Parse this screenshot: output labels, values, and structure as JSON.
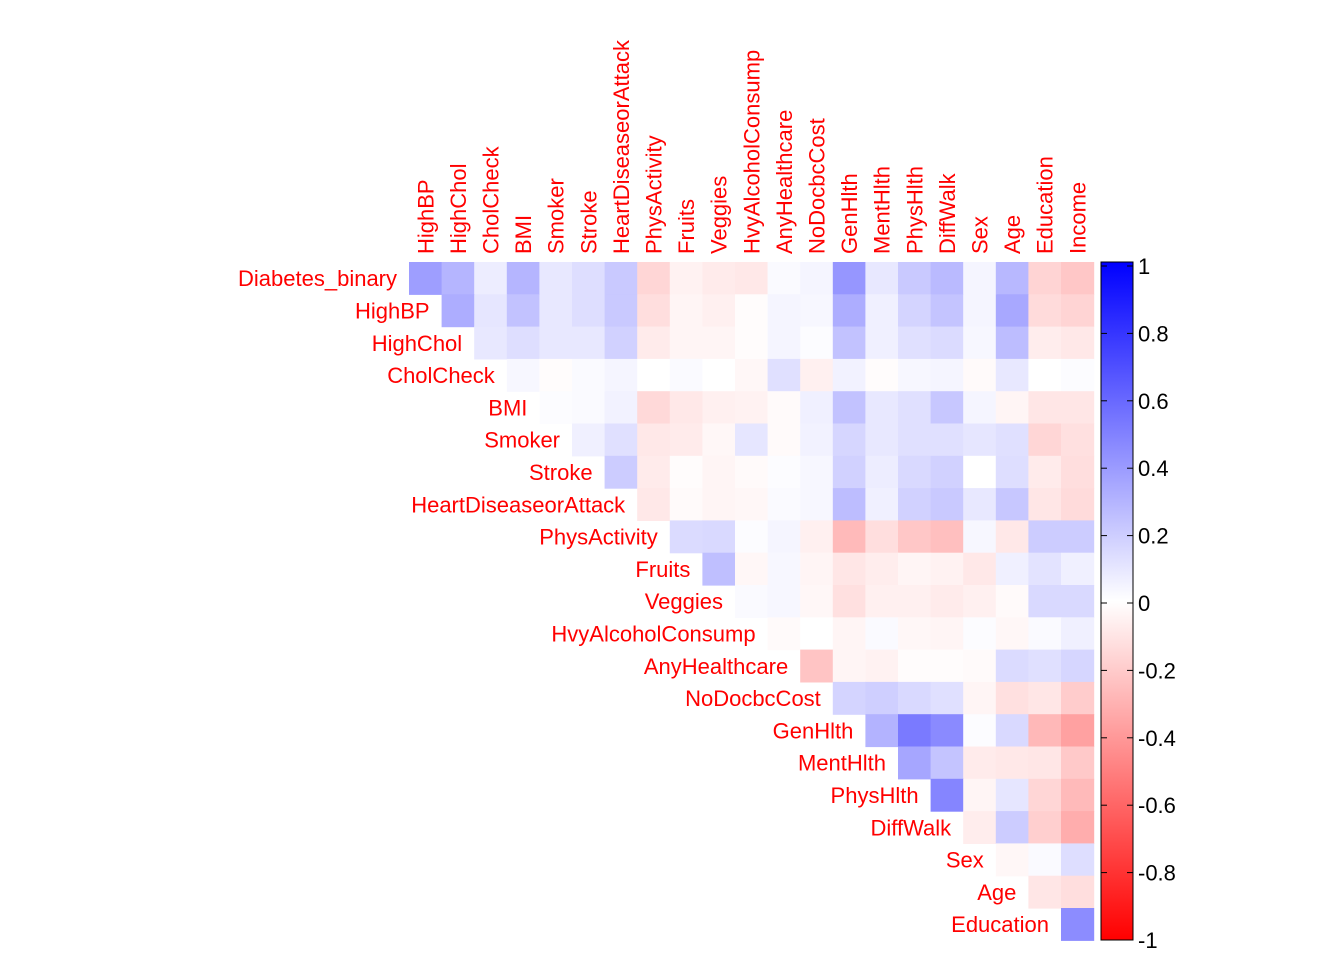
{
  "chart_data": {
    "type": "heatmap",
    "variables": [
      "Diabetes_binary",
      "HighBP",
      "HighChol",
      "CholCheck",
      "BMI",
      "Smoker",
      "Stroke",
      "HeartDiseaseorAttack",
      "PhysActivity",
      "Fruits",
      "Veggies",
      "HvyAlcoholConsump",
      "AnyHealthcare",
      "NoDocbcCost",
      "GenHlth",
      "MentHlth",
      "PhysHlth",
      "DiffWalk",
      "Sex",
      "Age",
      "Education",
      "Income"
    ],
    "row_labels": [
      "Diabetes_binary",
      "HighBP",
      "HighChol",
      "CholCheck",
      "BMI",
      "Smoker",
      "Stroke",
      "HeartDiseaseorAttack",
      "PhysActivity",
      "Fruits",
      "Veggies",
      "HvyAlcoholConsump",
      "AnyHealthcare",
      "NoDocbcCost",
      "GenHlth",
      "MentHlth",
      "PhysHlth",
      "DiffWalk",
      "Sex",
      "Age",
      "Education"
    ],
    "column_labels": [
      "HighBP",
      "HighChol",
      "CholCheck",
      "BMI",
      "Smoker",
      "Stroke",
      "HeartDiseaseorAttack",
      "PhysActivity",
      "Fruits",
      "Veggies",
      "HvyAlcoholConsump",
      "AnyHealthcare",
      "NoDocbcCost",
      "GenHlth",
      "MentHlth",
      "PhysHlth",
      "DiffWalk",
      "Sex",
      "Age",
      "Education",
      "Income"
    ],
    "matrix_form": "upper triangle, row i vs column j (j >= i)",
    "values": [
      [
        0.38,
        0.29,
        0.07,
        0.29,
        0.09,
        0.13,
        0.21,
        -0.16,
        -0.05,
        -0.08,
        -0.09,
        0.02,
        0.04,
        0.41,
        0.09,
        0.21,
        0.27,
        0.04,
        0.28,
        -0.17,
        -0.22
      ],
      [
        0.32,
        0.1,
        0.24,
        0.09,
        0.13,
        0.21,
        -0.13,
        -0.04,
        -0.06,
        -0.01,
        0.04,
        0.03,
        0.32,
        0.06,
        0.17,
        0.23,
        0.04,
        0.34,
        -0.14,
        -0.17
      ],
      [
        0.09,
        0.13,
        0.09,
        0.09,
        0.18,
        -0.08,
        -0.04,
        -0.04,
        -0.01,
        0.04,
        0.01,
        0.24,
        0.06,
        0.12,
        0.14,
        0.03,
        0.26,
        -0.07,
        -0.09
      ],
      [
        0.03,
        -0.01,
        0.02,
        0.04,
        0.0,
        0.02,
        0.0,
        -0.03,
        0.12,
        -0.06,
        0.05,
        -0.01,
        0.03,
        0.04,
        -0.02,
        0.09,
        0.0,
        0.01
      ],
      [
        0.01,
        0.02,
        0.05,
        -0.15,
        -0.09,
        -0.06,
        -0.05,
        -0.02,
        0.06,
        0.24,
        0.09,
        0.12,
        0.22,
        0.04,
        -0.04,
        -0.1,
        -0.1
      ],
      [
        0.06,
        0.12,
        -0.09,
        -0.08,
        -0.03,
        0.1,
        -0.02,
        0.05,
        0.16,
        0.09,
        0.12,
        0.12,
        0.1,
        0.12,
        -0.16,
        -0.12
      ],
      [
        0.2,
        -0.08,
        -0.01,
        -0.04,
        -0.02,
        0.01,
        0.03,
        0.18,
        0.07,
        0.15,
        0.18,
        0.0,
        0.13,
        -0.08,
        -0.13
      ],
      [
        -0.09,
        -0.02,
        -0.04,
        -0.03,
        0.02,
        0.03,
        0.26,
        0.06,
        0.18,
        0.21,
        0.09,
        0.22,
        -0.1,
        -0.14
      ],
      [
        0.14,
        0.15,
        0.01,
        0.04,
        -0.06,
        -0.27,
        -0.13,
        -0.22,
        -0.25,
        0.03,
        -0.09,
        0.2,
        0.2
      ],
      [
        0.25,
        -0.03,
        0.03,
        -0.04,
        -0.1,
        -0.07,
        -0.04,
        -0.05,
        -0.09,
        0.06,
        0.11,
        0.06
      ],
      [
        0.02,
        0.03,
        -0.03,
        -0.12,
        -0.06,
        -0.06,
        -0.08,
        -0.06,
        -0.02,
        0.15,
        0.15
      ],
      [
        -0.02,
        0.0,
        -0.04,
        0.02,
        -0.03,
        -0.04,
        0.01,
        -0.03,
        0.02,
        0.06
      ],
      [
        -0.23,
        -0.04,
        -0.05,
        -0.01,
        -0.01,
        -0.02,
        0.14,
        0.12,
        0.16
      ],
      [
        0.17,
        0.19,
        0.15,
        0.12,
        -0.04,
        -0.12,
        -0.1,
        -0.2
      ],
      [
        0.3,
        0.52,
        0.46,
        0.01,
        0.15,
        -0.28,
        -0.37
      ],
      [
        0.35,
        0.23,
        -0.08,
        -0.09,
        -0.1,
        -0.21
      ],
      [
        0.48,
        -0.04,
        0.1,
        -0.16,
        -0.27
      ],
      [
        -0.07,
        0.2,
        -0.19,
        -0.32
      ],
      [
        -0.03,
        0.02,
        0.13
      ],
      [
        -0.1,
        -0.13
      ],
      [
        0.45
      ]
    ],
    "colorbar": {
      "range": [
        -1,
        1
      ],
      "ticks": [
        "1",
        "0.8",
        "0.6",
        "0.4",
        "0.2",
        "0",
        "-0.2",
        "-0.4",
        "-0.6",
        "-0.8",
        "-1"
      ],
      "colors": [
        "#ff0000",
        "#ffffff",
        "#0000ff"
      ]
    },
    "label_color": "#ff0000",
    "title": "",
    "xlabel": "",
    "ylabel": ""
  }
}
